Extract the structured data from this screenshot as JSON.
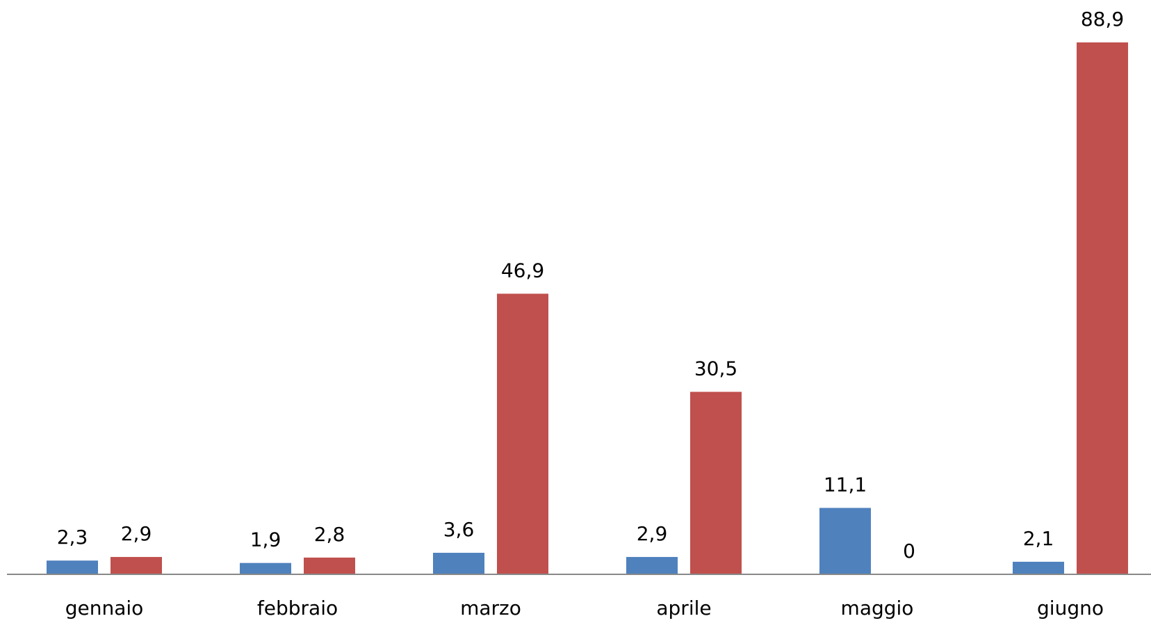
{
  "chart_data": {
    "type": "bar",
    "categories": [
      "gennaio",
      "febbraio",
      "marzo",
      "aprile",
      "maggio",
      "giugno"
    ],
    "series": [
      {
        "color": "#4f81bd",
        "values": [
          2.3,
          1.9,
          3.6,
          2.9,
          11.1,
          2.1
        ],
        "value_labels": [
          "2,3",
          "1,9",
          "3,6",
          "2,9",
          "11,1",
          "2,1"
        ]
      },
      {
        "color": "#c0504d",
        "values": [
          2.9,
          2.8,
          46.9,
          30.5,
          0,
          88.9
        ],
        "value_labels": [
          "2,9",
          "2,8",
          "46,9",
          "30,5",
          "0",
          "88,9"
        ]
      }
    ]
  }
}
